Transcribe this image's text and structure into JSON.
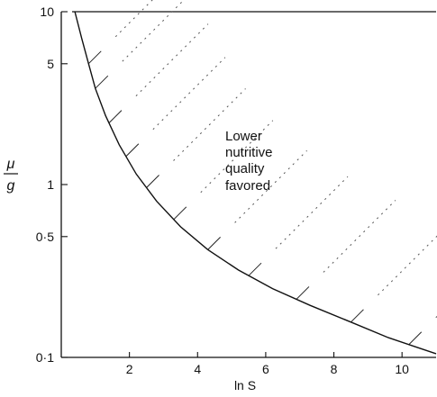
{
  "chart_data": {
    "type": "line",
    "xlabel": "ln S",
    "ylabel": {
      "numerator": "μ",
      "denominator": "g"
    },
    "x_ticks": [
      "2",
      "4",
      "6",
      "8",
      "10"
    ],
    "y_ticks": [
      "0·1",
      "0·5",
      "1",
      "5",
      "10"
    ],
    "xlim": [
      0.0,
      11.0
    ],
    "ylim": [
      0.1,
      10
    ],
    "y_scale": "log",
    "x_tick_values": [
      2,
      4,
      6,
      8,
      10
    ],
    "y_tick_values": [
      0.1,
      0.5,
      1,
      5,
      10
    ],
    "boundary_curve": {
      "x": [
        0.4,
        0.6,
        0.8,
        1.0,
        1.3,
        1.7,
        2.2,
        2.8,
        3.5,
        4.3,
        5.2,
        6.2,
        7.3,
        8.5,
        9.6,
        10.4,
        11.0
      ],
      "y": [
        10,
        7.0,
        5.0,
        3.6,
        2.5,
        1.7,
        1.15,
        0.8,
        0.57,
        0.42,
        0.32,
        0.25,
        0.2,
        0.16,
        0.13,
        0.115,
        0.105
      ]
    },
    "shaded_region": "above-curve",
    "annotation": [
      "Lower",
      "nutritive",
      "quality",
      "favored"
    ]
  }
}
